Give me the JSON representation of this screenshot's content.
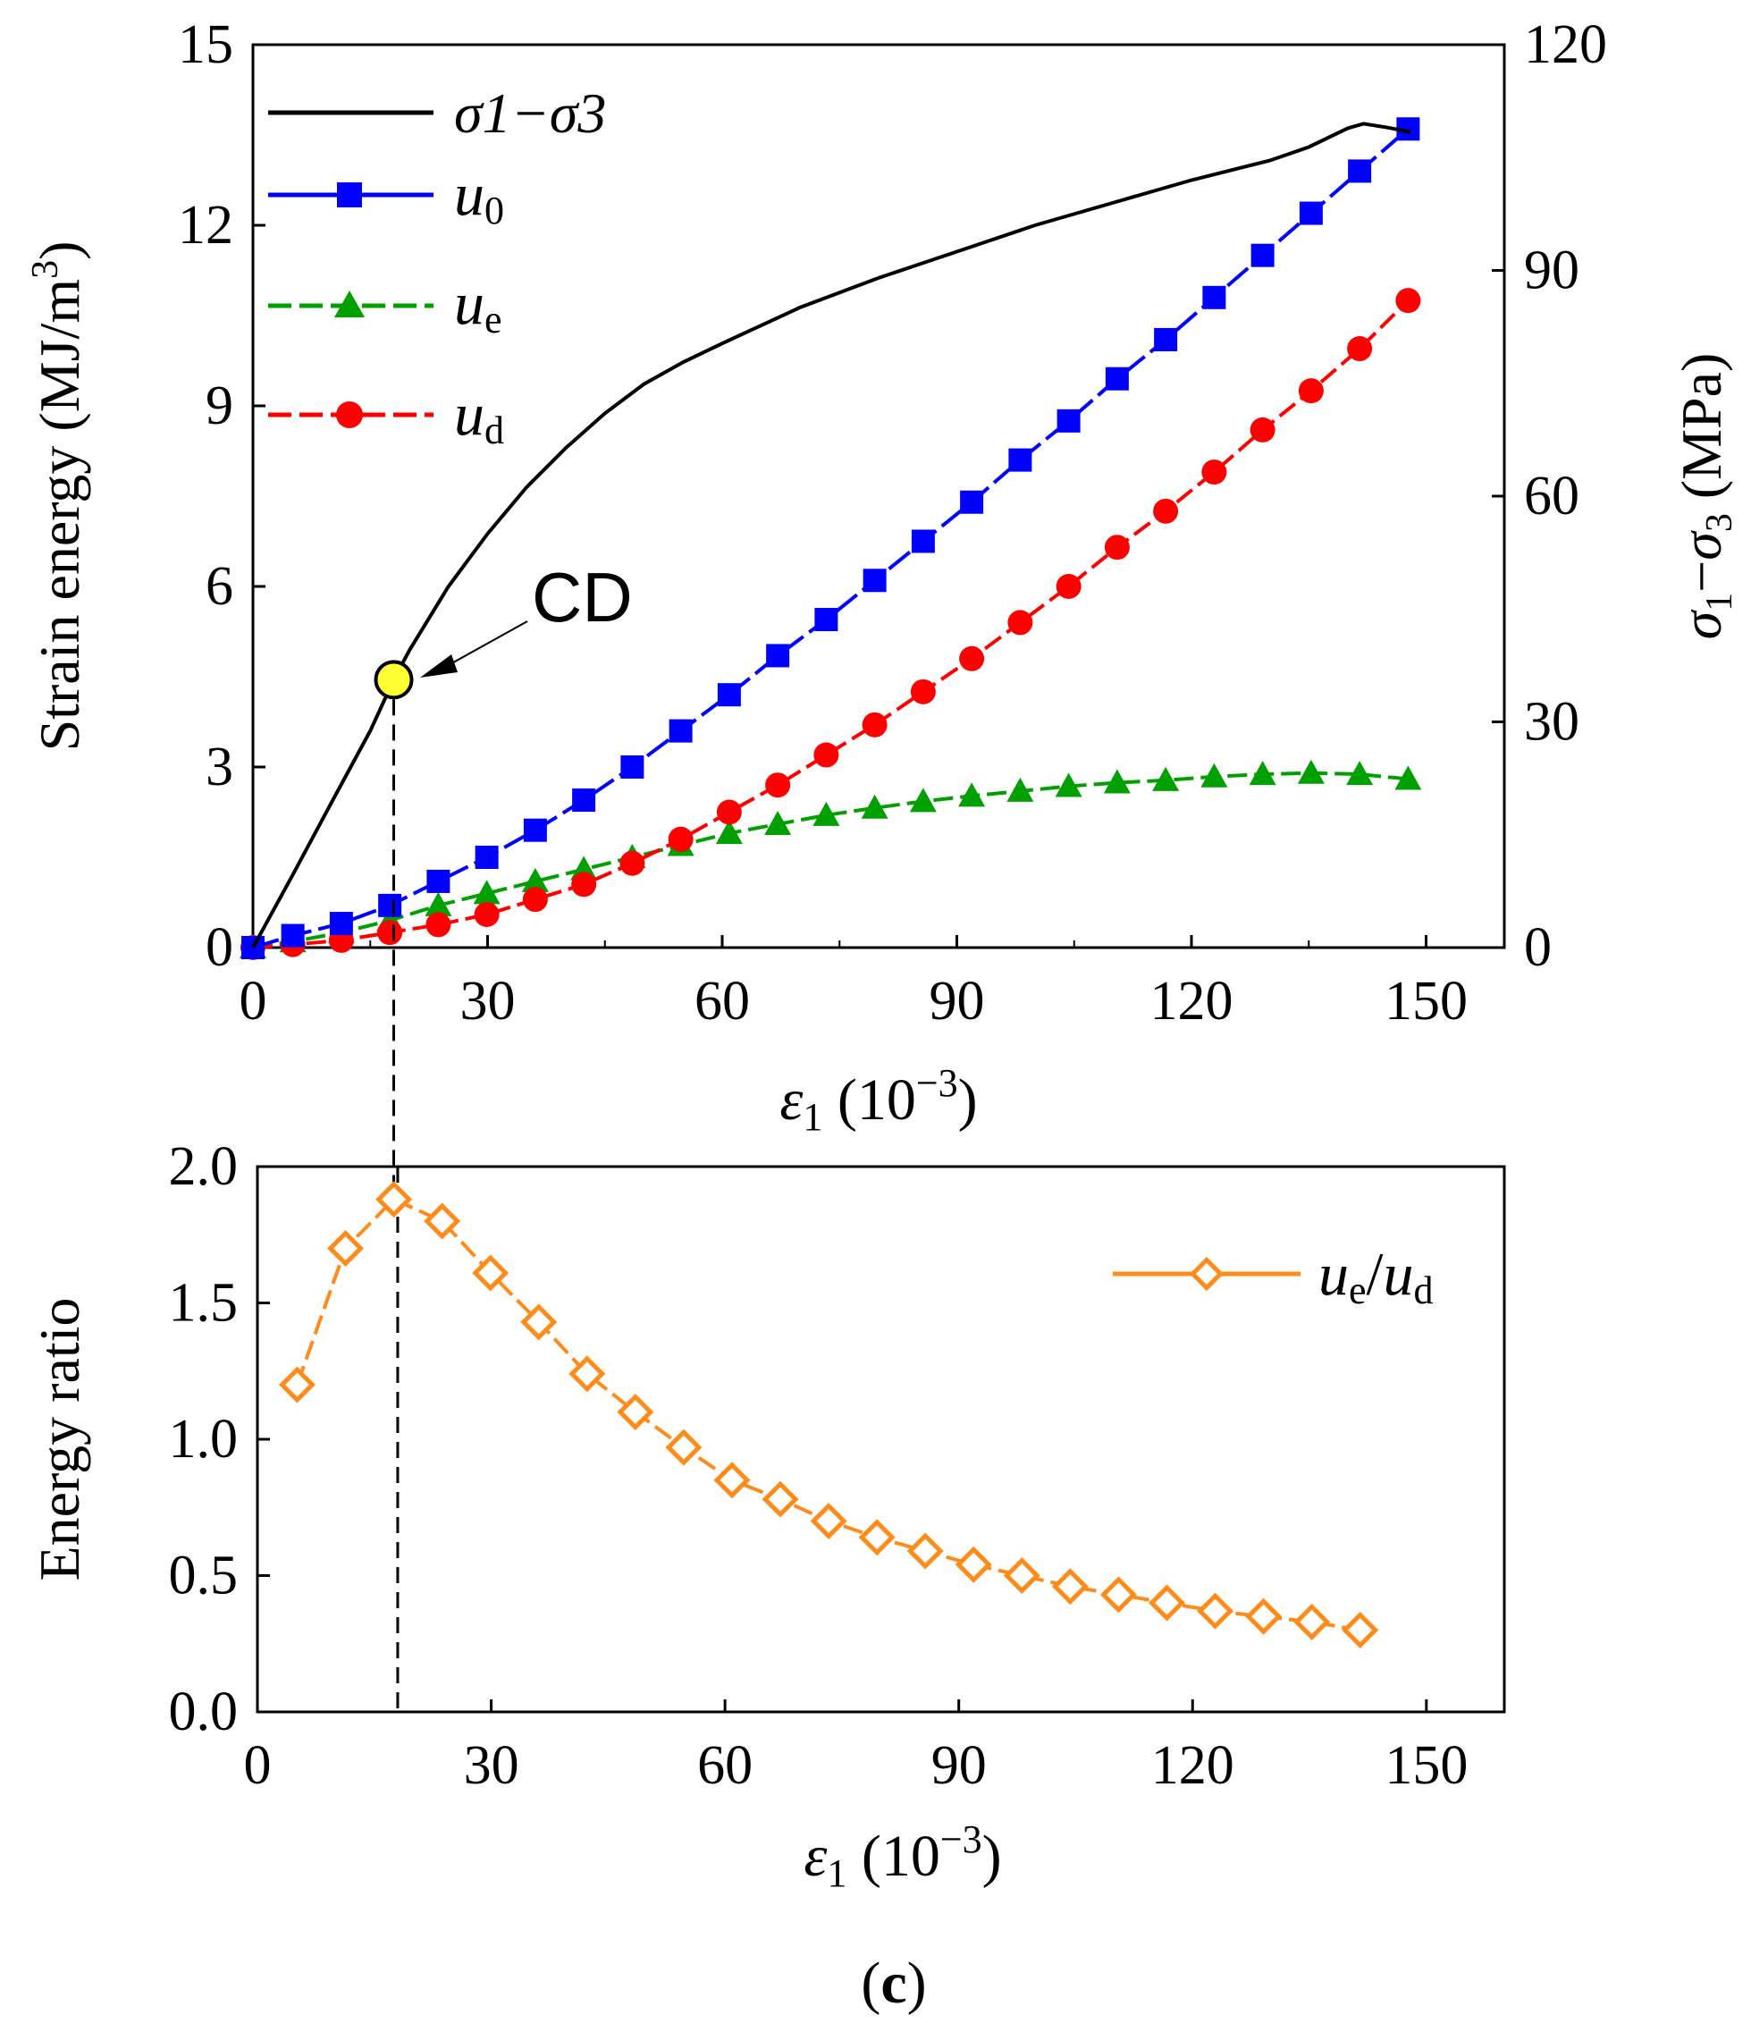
{
  "colors": {
    "stress": "#000000",
    "u0": "#0000ff",
    "ue": "#00a000",
    "ud": "#ff0000",
    "ratio": "#ff8c1a",
    "cd_fill": "#ffff33"
  },
  "chart_data": [
    {
      "type": "line",
      "panel": "top",
      "xlabel": "ε1 (10−3)",
      "ylabel": "Strain energy (MJ/m3)",
      "y2label": "σ1−σ3 (MPa)",
      "xlim": [
        0,
        160
      ],
      "ylim": [
        0,
        15
      ],
      "y2lim": [
        0,
        120
      ],
      "xticks": [
        "0",
        "30",
        "60",
        "90",
        "120",
        "150"
      ],
      "yticks": [
        "0",
        "3",
        "6",
        "9",
        "12",
        "15"
      ],
      "y2ticks": [
        "0",
        "30",
        "60",
        "90",
        "120"
      ],
      "legend": {
        "position": "top-left",
        "entries": [
          {
            "main": "σ1−σ3",
            "series": "stress"
          },
          {
            "main": "u",
            "sub": "0",
            "series": "u0"
          },
          {
            "main": "u",
            "sub": "e",
            "series": "ue"
          },
          {
            "main": "u",
            "sub": "d",
            "series": "ud"
          }
        ]
      },
      "annotation": {
        "label": "CD",
        "x": 18,
        "y2": 35.6
      },
      "x_markers": [
        0,
        5.1,
        11.3,
        17.5,
        23.7,
        29.9,
        36.1,
        42.3,
        48.5,
        54.7,
        60.9,
        67.1,
        73.3,
        79.5,
        85.7,
        91.9,
        98.1,
        104.3,
        110.5,
        116.7,
        122.9,
        129.1,
        135.3,
        141.5,
        147.7
      ],
      "series": [
        {
          "key": "stress",
          "name": "σ1−σ3",
          "axis": "right",
          "marker": "none",
          "x": [
            0,
            5,
            10,
            15,
            18,
            20,
            25,
            30,
            35,
            40,
            45,
            50,
            55,
            60,
            70,
            80,
            90,
            100,
            110,
            120,
            130,
            135,
            140,
            142,
            145,
            148
          ],
          "y": [
            0,
            9.5,
            19.2,
            28.8,
            35.6,
            39.5,
            48,
            55,
            61.2,
            66.4,
            71,
            74.9,
            77.8,
            80.3,
            85.1,
            89,
            92.5,
            96,
            99,
            102,
            104.6,
            106.4,
            108.9,
            109.5,
            109,
            108.4
          ]
        },
        {
          "key": "u0",
          "name": "u0",
          "axis": "left",
          "marker": "square",
          "y": [
            0,
            0.2,
            0.4,
            0.7,
            1.1,
            1.5,
            1.95,
            2.45,
            3.0,
            3.6,
            4.2,
            4.85,
            5.45,
            6.1,
            6.75,
            7.4,
            8.1,
            8.75,
            9.45,
            10.1,
            10.8,
            11.5,
            12.2,
            12.9,
            13.6
          ]
        },
        {
          "key": "ue",
          "name": "ue",
          "axis": "left",
          "marker": "triangle",
          "y": [
            0,
            0.1,
            0.25,
            0.45,
            0.7,
            0.9,
            1.1,
            1.3,
            1.5,
            1.7,
            1.9,
            2.05,
            2.2,
            2.32,
            2.43,
            2.52,
            2.6,
            2.68,
            2.74,
            2.78,
            2.84,
            2.88,
            2.9,
            2.88,
            2.8
          ]
        },
        {
          "key": "ud",
          "name": "ud",
          "axis": "left",
          "marker": "circle",
          "y": [
            0,
            0.05,
            0.12,
            0.25,
            0.38,
            0.55,
            0.8,
            1.05,
            1.4,
            1.8,
            2.25,
            2.7,
            3.2,
            3.7,
            4.25,
            4.8,
            5.4,
            6.0,
            6.65,
            7.25,
            7.9,
            8.6,
            9.25,
            9.95,
            10.75
          ]
        }
      ]
    },
    {
      "type": "line",
      "panel": "bottom",
      "xlabel": "ε1 (10−3)",
      "ylabel": "Energy ratio",
      "xlim": [
        0,
        160
      ],
      "ylim": [
        0,
        2
      ],
      "xticks": [
        "0",
        "30",
        "60",
        "90",
        "120",
        "150"
      ],
      "yticks": [
        "0.0",
        "0.5",
        "1.0",
        "1.5",
        "2.0"
      ],
      "legend": {
        "position": "top-right",
        "entries": [
          {
            "main": "u",
            "sub": "e",
            "mid": "/",
            "main2": "u",
            "sub2": "d",
            "series": "ratio"
          }
        ]
      },
      "series": [
        {
          "key": "ratio",
          "name": "ue/ud",
          "marker": "diamond-open",
          "x": [
            5.1,
            11.3,
            17.5,
            23.7,
            29.9,
            36.1,
            42.3,
            48.5,
            54.7,
            60.9,
            67.1,
            73.3,
            79.5,
            85.7,
            91.9,
            98.1,
            104.3,
            110.5,
            116.7,
            122.9,
            129.1,
            135.3,
            141.5
          ],
          "y": [
            1.2,
            1.7,
            1.88,
            1.8,
            1.61,
            1.43,
            1.24,
            1.1,
            0.97,
            0.85,
            0.78,
            0.7,
            0.64,
            0.59,
            0.54,
            0.5,
            0.46,
            0.43,
            0.4,
            0.37,
            0.35,
            0.33,
            0.3
          ]
        }
      ]
    }
  ],
  "caption": {
    "open": "(",
    "letter": "c",
    "close": ")"
  }
}
